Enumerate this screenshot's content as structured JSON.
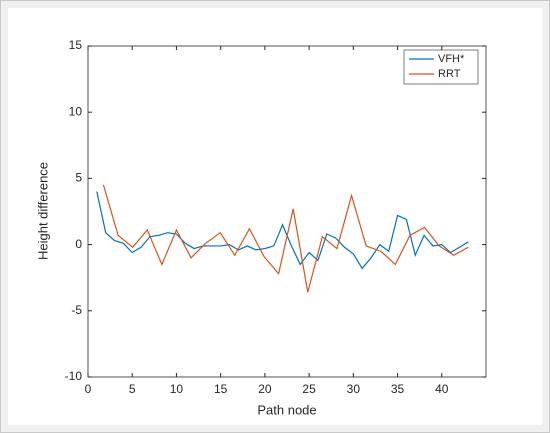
{
  "chart_data": {
    "type": "line",
    "xlabel": "Path node",
    "ylabel": "Height difference",
    "xlim": [
      0,
      45
    ],
    "ylim": [
      -10,
      15
    ],
    "xticks": [
      0,
      5,
      10,
      15,
      20,
      25,
      30,
      35,
      40
    ],
    "yticks": [
      -10,
      -5,
      0,
      5,
      10,
      15
    ],
    "legend": "top-right",
    "series": [
      {
        "name": "VFH*",
        "color": "#0072bd",
        "x": [
          1,
          2,
          3,
          4,
          5,
          6,
          7,
          8,
          9,
          10,
          11,
          12,
          13,
          14,
          15,
          16,
          17,
          18,
          19,
          20,
          21,
          22,
          23,
          24,
          25,
          26,
          27,
          28,
          29,
          30,
          31,
          32,
          33,
          34,
          35,
          36,
          37,
          38,
          39,
          40,
          41,
          42,
          43
        ],
        "values": [
          4.0,
          0.9,
          0.3,
          0.1,
          -0.6,
          -0.2,
          0.6,
          0.7,
          0.9,
          0.8,
          0.1,
          -0.3,
          -0.1,
          -0.1,
          -0.1,
          0.0,
          -0.4,
          -0.1,
          -0.4,
          -0.3,
          -0.1,
          1.5,
          -0.1,
          -1.5,
          -0.6,
          -1.2,
          0.8,
          0.5,
          -0.2,
          -0.7,
          -1.8,
          -1.0,
          0.0,
          -0.5,
          2.2,
          1.9,
          -0.8,
          0.7,
          -0.1,
          0.0,
          -0.6,
          -0.2,
          0.2
        ]
      },
      {
        "name": "RRT",
        "color": "#d95319",
        "x": [
          1.75,
          3.4,
          5.05,
          6.7,
          8.35,
          10.0,
          11.65,
          13.3,
          14.95,
          16.6,
          18.25,
          19.9,
          21.55,
          23.2,
          24.85,
          26.5,
          28.15,
          29.8,
          31.45,
          33.1,
          34.75,
          36.4,
          38.05,
          39.7,
          41.35,
          43.0
        ],
        "values": [
          4.5,
          0.7,
          -0.2,
          1.1,
          -1.5,
          1.1,
          -1.0,
          0.1,
          0.9,
          -0.8,
          1.2,
          -0.9,
          -2.2,
          2.7,
          -3.6,
          0.6,
          -0.3,
          3.7,
          -0.1,
          -0.5,
          -1.5,
          0.7,
          1.3,
          -0.1,
          -0.8,
          -0.2
        ]
      }
    ]
  }
}
